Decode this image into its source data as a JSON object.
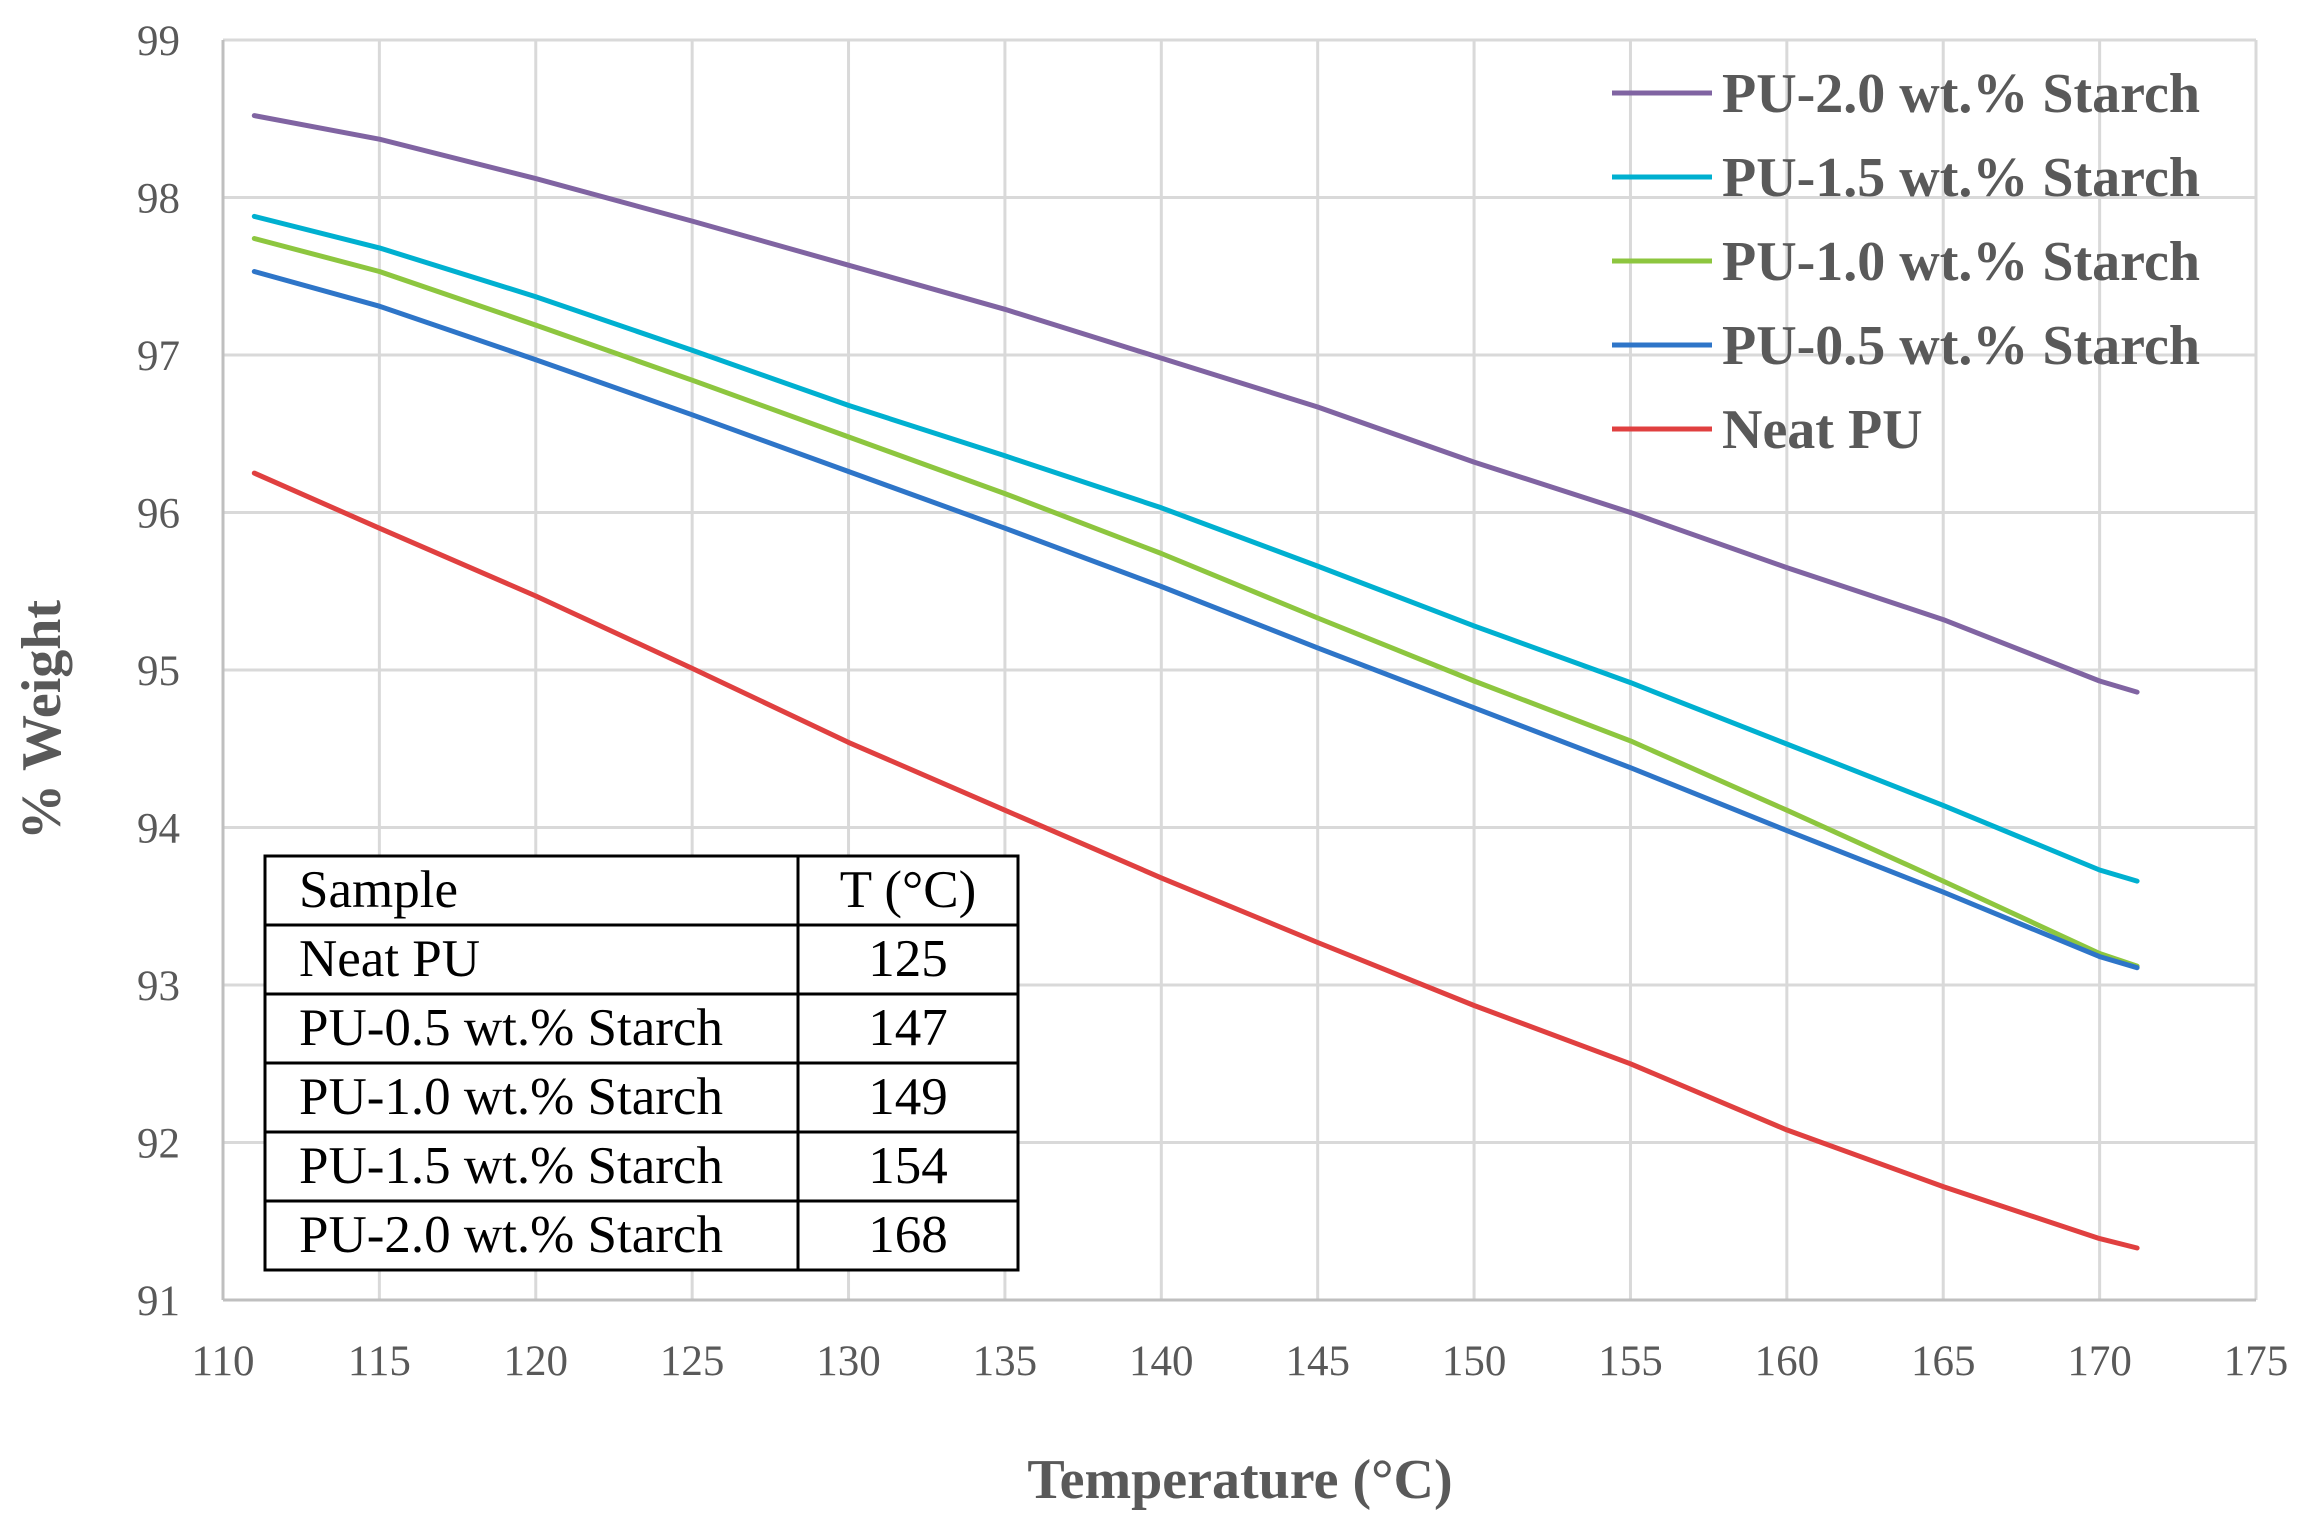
{
  "chart_data": {
    "type": "line",
    "title": "",
    "xlabel": "Temperature (°C)",
    "ylabel": "% Weight",
    "xlim": [
      110,
      175
    ],
    "ylim": [
      91,
      99
    ],
    "x_ticks": [
      "110",
      "115",
      "120",
      "125",
      "130",
      "135",
      "140",
      "145",
      "150",
      "155",
      "160",
      "165",
      "170",
      "175"
    ],
    "y_ticks": [
      "91",
      "92",
      "93",
      "94",
      "95",
      "96",
      "97",
      "98",
      "99"
    ],
    "grid": true,
    "legend_position": "top-right",
    "series": [
      {
        "name": "PU-2.0 wt.% Starch",
        "color": "#8064A2",
        "points": [
          [
            111,
            98.52
          ],
          [
            115,
            98.37
          ],
          [
            120,
            98.12
          ],
          [
            125,
            97.85
          ],
          [
            130,
            97.57
          ],
          [
            135,
            97.29
          ],
          [
            140,
            96.98
          ],
          [
            145,
            96.67
          ],
          [
            150,
            96.32
          ],
          [
            155,
            96.0
          ],
          [
            160,
            95.65
          ],
          [
            165,
            95.32
          ],
          [
            170,
            94.93
          ],
          [
            171.2,
            94.86
          ]
        ]
      },
      {
        "name": "PU-1.5 wt.% Starch",
        "color": "#00B0D0",
        "points": [
          [
            111,
            97.88
          ],
          [
            115,
            97.68
          ],
          [
            120,
            97.37
          ],
          [
            125,
            97.03
          ],
          [
            130,
            96.68
          ],
          [
            135,
            96.36
          ],
          [
            140,
            96.03
          ],
          [
            145,
            95.66
          ],
          [
            150,
            95.28
          ],
          [
            155,
            94.92
          ],
          [
            160,
            94.53
          ],
          [
            165,
            94.14
          ],
          [
            170,
            93.73
          ],
          [
            171.2,
            93.66
          ]
        ]
      },
      {
        "name": "PU-1.0 wt.% Starch",
        "color": "#8DC63F",
        "points": [
          [
            111,
            97.74
          ],
          [
            115,
            97.53
          ],
          [
            120,
            97.19
          ],
          [
            125,
            96.84
          ],
          [
            130,
            96.48
          ],
          [
            135,
            96.12
          ],
          [
            140,
            95.74
          ],
          [
            145,
            95.33
          ],
          [
            150,
            94.93
          ],
          [
            155,
            94.55
          ],
          [
            160,
            94.11
          ],
          [
            165,
            93.66
          ],
          [
            170,
            93.2
          ],
          [
            171.2,
            93.12
          ]
        ]
      },
      {
        "name": "PU-0.5 wt.% Starch",
        "color": "#2E75C8",
        "points": [
          [
            111,
            97.53
          ],
          [
            115,
            97.31
          ],
          [
            120,
            96.97
          ],
          [
            125,
            96.62
          ],
          [
            130,
            96.26
          ],
          [
            135,
            95.9
          ],
          [
            140,
            95.53
          ],
          [
            145,
            95.14
          ],
          [
            150,
            94.76
          ],
          [
            155,
            94.38
          ],
          [
            160,
            93.98
          ],
          [
            165,
            93.59
          ],
          [
            170,
            93.18
          ],
          [
            171.2,
            93.11
          ]
        ]
      },
      {
        "name": "Neat PU",
        "color": "#E04040",
        "points": [
          [
            111,
            96.25
          ],
          [
            115,
            95.9
          ],
          [
            120,
            95.47
          ],
          [
            125,
            95.01
          ],
          [
            130,
            94.54
          ],
          [
            135,
            94.11
          ],
          [
            140,
            93.68
          ],
          [
            145,
            93.27
          ],
          [
            150,
            92.87
          ],
          [
            155,
            92.5
          ],
          [
            160,
            92.08
          ],
          [
            165,
            91.72
          ],
          [
            170,
            91.39
          ],
          [
            171.2,
            91.33
          ]
        ]
      }
    ],
    "table": {
      "headers": [
        "Sample",
        "T (°C)"
      ],
      "rows": [
        [
          "Neat PU",
          "125"
        ],
        [
          "PU-0.5 wt.% Starch",
          "147"
        ],
        [
          "PU-1.0 wt.% Starch",
          "149"
        ],
        [
          "PU-1.5 wt.% Starch",
          "154"
        ],
        [
          "PU-2.0 wt.% Starch",
          "168"
        ]
      ]
    }
  }
}
